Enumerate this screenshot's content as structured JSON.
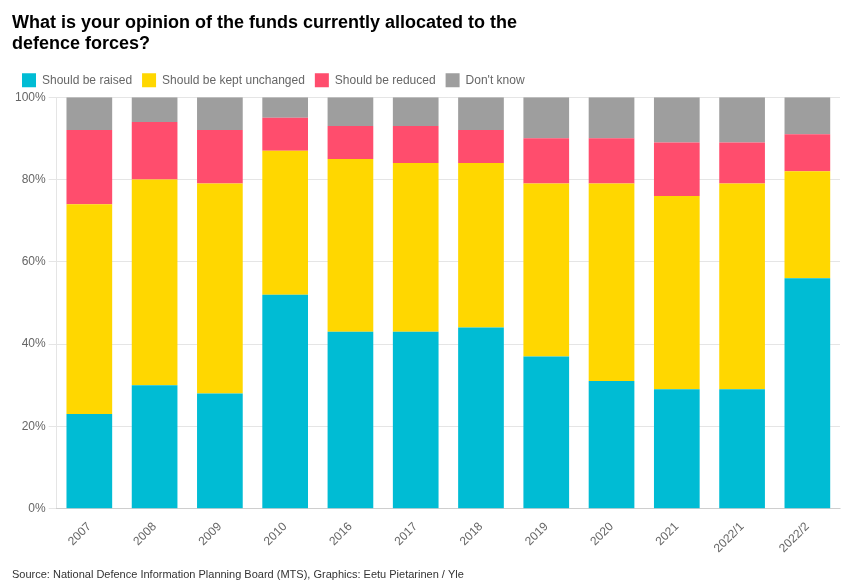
{
  "chart_data": {
    "type": "bar",
    "stacked": true,
    "title": [
      "What is your opinion of the funds currently allocated to the",
      "defence forces?"
    ],
    "annotation": "Source: National Defence Information Planning Board (MTS), Graphics: Eetu Pietarinen / Yle",
    "categories": [
      "2007",
      "2008",
      "2009",
      "2010",
      "2016",
      "2017",
      "2018",
      "2019",
      "2020",
      "2021",
      "2022/1",
      "2022/2"
    ],
    "series": [
      {
        "name": "Should be raised",
        "color": "#00BCD4",
        "values": [
          23,
          30,
          28,
          52,
          43,
          43,
          44,
          37,
          31,
          29,
          29,
          56
        ]
      },
      {
        "name": "Should be kept unchanged",
        "color": "#FFD700",
        "values": [
          51,
          50,
          51,
          35,
          42,
          41,
          40,
          42,
          48,
          47,
          50,
          26
        ]
      },
      {
        "name": "Should be reduced",
        "color": "#FF4D6D",
        "values": [
          18,
          14,
          13,
          8,
          8,
          9,
          8,
          11,
          11,
          13,
          10,
          9
        ]
      },
      {
        "name": "Don't know",
        "color": "#9E9E9E",
        "values": [
          8,
          6,
          8,
          5,
          7,
          7,
          8,
          10,
          10,
          11,
          11,
          9
        ]
      }
    ],
    "ylim": [
      0,
      100
    ],
    "yticks": [
      {
        "value": 0,
        "label": "0%"
      },
      {
        "value": 20,
        "label": "20%"
      },
      {
        "value": 40,
        "label": "40%"
      },
      {
        "value": 60,
        "label": "60%"
      },
      {
        "value": 80,
        "label": "80%"
      },
      {
        "value": 100,
        "label": "100%"
      }
    ],
    "grid": true,
    "legend": "upper left"
  }
}
